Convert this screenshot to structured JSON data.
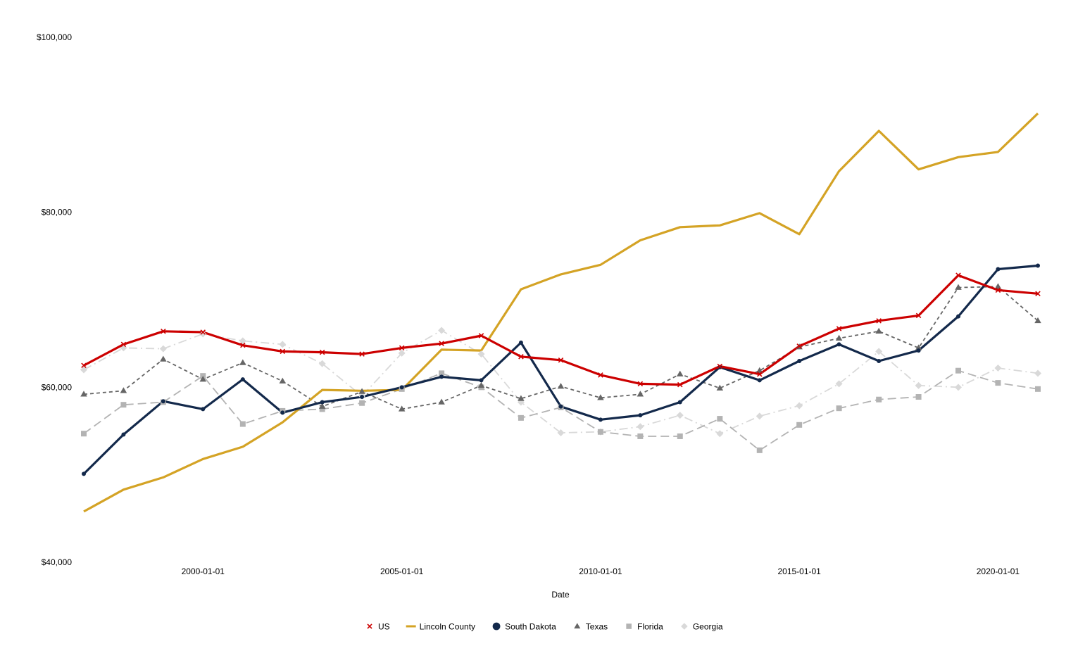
{
  "chart_data": {
    "type": "line",
    "title": "",
    "xlabel": "Date",
    "ylabel": "",
    "x": [
      "1997-01-01",
      "1998-01-01",
      "1999-01-01",
      "2000-01-01",
      "2001-01-01",
      "2002-01-01",
      "2003-01-01",
      "2004-01-01",
      "2005-01-01",
      "2006-01-01",
      "2007-01-01",
      "2008-01-01",
      "2009-01-01",
      "2010-01-01",
      "2011-01-01",
      "2012-01-01",
      "2013-01-01",
      "2014-01-01",
      "2015-01-01",
      "2016-01-01",
      "2017-01-01",
      "2018-01-01",
      "2019-01-01",
      "2020-01-01",
      "2021-01-01"
    ],
    "x_ticks": [
      "2000-01-01",
      "2005-01-01",
      "2010-01-01",
      "2015-01-01",
      "2020-01-01"
    ],
    "y_ticks": [
      40000,
      60000,
      80000,
      100000
    ],
    "y_tick_labels": [
      "$40,000",
      "$60,000",
      "$80,000",
      "$100,000"
    ],
    "ylim": [
      40000,
      100000
    ],
    "grid": false,
    "legend_position": "bottom",
    "series": [
      {
        "name": "US",
        "color": "#cc0000",
        "line": "solid",
        "marker": "x",
        "values": [
          62500,
          64900,
          66400,
          66300,
          64800,
          64100,
          64000,
          63800,
          64500,
          65000,
          65900,
          63500,
          63100,
          61400,
          60400,
          60300,
          62400,
          61500,
          64700,
          66700,
          67600,
          68200,
          72800,
          71100,
          70700
        ]
      },
      {
        "name": "Lincoln County",
        "color": "#d4a325",
        "line": "solid",
        "marker": "none",
        "values": [
          45800,
          48300,
          49700,
          51800,
          53200,
          56000,
          59700,
          59600,
          59700,
          64300,
          64200,
          71200,
          72900,
          74000,
          76800,
          78300,
          78500,
          79900,
          77500,
          84700,
          89300,
          84900,
          86300,
          86900,
          91300
        ]
      },
      {
        "name": "South Dakota",
        "color": "#13294b",
        "line": "solid",
        "marker": "circle",
        "values": [
          50100,
          54600,
          58400,
          57500,
          60900,
          57100,
          58300,
          58900,
          60000,
          61200,
          60800,
          65100,
          57800,
          56300,
          56800,
          58300,
          62300,
          60800,
          63000,
          64900,
          63000,
          64200,
          68100,
          73500,
          73900
        ]
      },
      {
        "name": "Texas",
        "color": "#666666",
        "line": "dashed",
        "marker": "triangle",
        "values": [
          59200,
          59600,
          63200,
          60900,
          62800,
          60700,
          57800,
          59500,
          57500,
          58300,
          60200,
          58700,
          60100,
          58800,
          59200,
          61500,
          59900,
          61900,
          64600,
          65600,
          66400,
          64500,
          71400,
          71500,
          67600
        ]
      },
      {
        "name": "Florida",
        "color": "#b3b3b3",
        "line": "longdash",
        "marker": "square",
        "values": [
          54700,
          58000,
          58300,
          61300,
          55800,
          57300,
          57500,
          58200,
          59800,
          61600,
          60000,
          56500,
          57700,
          54900,
          54400,
          54400,
          56400,
          52800,
          55700,
          57600,
          58600,
          58900,
          61900,
          60500,
          59800
        ]
      },
      {
        "name": "Georgia",
        "color": "#d9d9d9",
        "line": "dashdot",
        "marker": "diamond",
        "values": [
          62000,
          64500,
          64400,
          66100,
          65300,
          64900,
          62700,
          59000,
          63900,
          66500,
          63800,
          58300,
          54800,
          54900,
          55500,
          56800,
          54700,
          56700,
          57900,
          60400,
          64100,
          60200,
          60000,
          62200,
          61600
        ]
      }
    ]
  }
}
